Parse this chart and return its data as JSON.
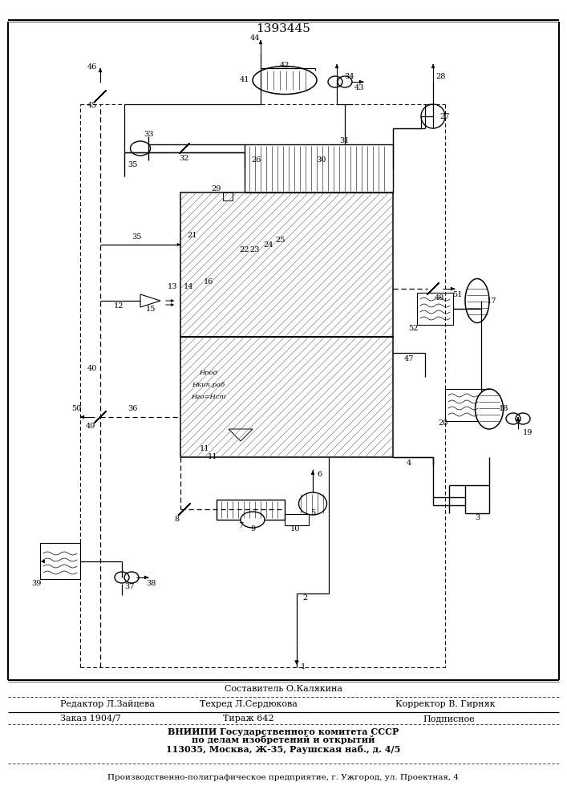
{
  "title": "1393445",
  "bg_color": "#ffffff",
  "footer": {
    "composer": "Составитель О.Калякина",
    "editor": "Редактор Л.Зайцева",
    "techred": "Техред Л.Сердюкова",
    "corrector": "Корректор В. Гирняк",
    "order": "Заказ 1904/7",
    "tirage": "Тираж 642",
    "subscription": "Подписное",
    "vniip1": "ВНИИПИ Государственного комитета СССР",
    "vniip2": "по делам изобретений и открытий",
    "vniip3": "113035, Москва, Ж-35, Раушская наб., д. 4/5",
    "production": "Производственно-полиграфическое предприятие, г. Ужгород, ул. Проектная, 4"
  }
}
